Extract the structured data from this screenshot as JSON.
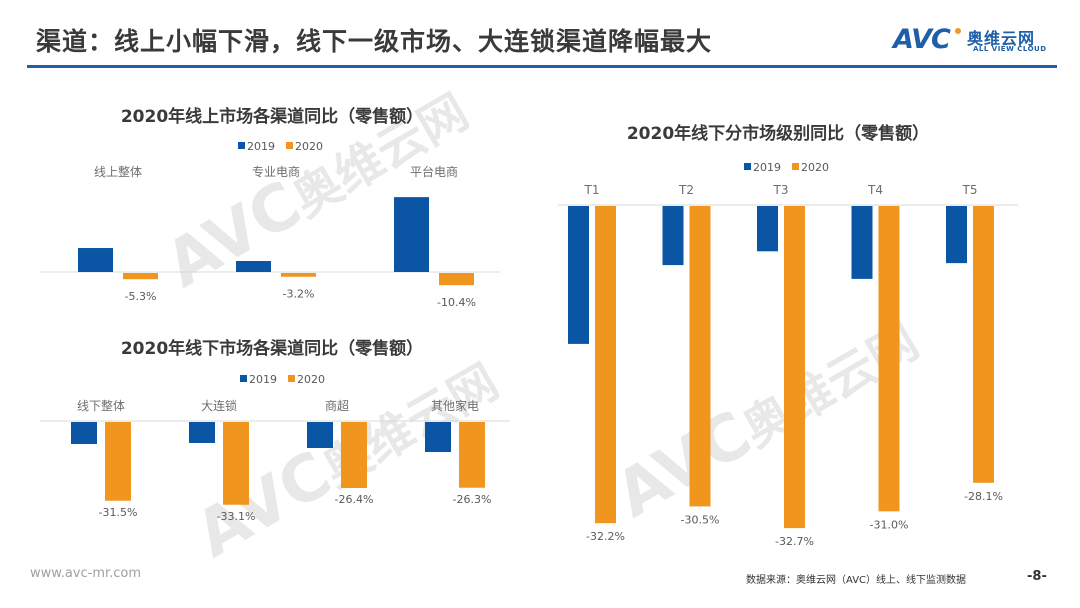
{
  "header": {
    "title": "渠道：线上小幅下滑，线下一级市场、大连锁渠道降幅最大",
    "logo": {
      "mark": "AVC",
      "name_cn": "奥维云网",
      "name_en": "ALL VIEW CLOUD"
    }
  },
  "colors": {
    "series_2019": "#0b56a4",
    "series_2020": "#f0961e",
    "accent": "#1f5fa8"
  },
  "watermark": {
    "mark": "AVC",
    "name_cn": "奥维云网",
    "name_en": "ALL VIEW CLOUD"
  },
  "chart_data": [
    {
      "id": "online",
      "type": "bar",
      "title": "2020年线上市场各渠道同比（零售额）",
      "legend": [
        "2019",
        "2020"
      ],
      "legend_position": "top",
      "categories": [
        "线上整体",
        "专业电商",
        "平台电商"
      ],
      "series": [
        {
          "name": "2019",
          "values": [
            20.5,
            9.4,
            64.0
          ]
        },
        {
          "name": "2020",
          "values": [
            -5.3,
            -3.2,
            -10.4
          ]
        }
      ],
      "data_labels": {
        "2020": [
          "-5.3%",
          "-3.2%",
          "-10.4%"
        ]
      },
      "unit": "%"
    },
    {
      "id": "offline",
      "type": "bar",
      "title": "2020年线下市场各渠道同比（零售额）",
      "legend": [
        "2019",
        "2020"
      ],
      "legend_position": "top",
      "categories": [
        "线下整体",
        "大连锁",
        "商超",
        "其他家电"
      ],
      "series": [
        {
          "name": "2019",
          "values": [
            -8.8,
            -8.4,
            -10.4,
            -12.0
          ]
        },
        {
          "name": "2020",
          "values": [
            -31.5,
            -33.1,
            -26.4,
            -26.3
          ]
        }
      ],
      "data_labels": {
        "2020": [
          "-31.5%",
          "-33.1%",
          "-26.4%",
          "-26.3%"
        ]
      },
      "unit": "%"
    },
    {
      "id": "tiers",
      "type": "bar",
      "title": "2020年线下分市场级别同比（零售额）",
      "legend": [
        "2019",
        "2020"
      ],
      "legend_position": "top",
      "categories": [
        "T1",
        "T2",
        "T3",
        "T4",
        "T5"
      ],
      "series": [
        {
          "name": "2019",
          "values": [
            -14.0,
            -6.0,
            -4.6,
            -7.4,
            -5.8
          ]
        },
        {
          "name": "2020",
          "values": [
            -32.2,
            -30.5,
            -32.7,
            -31.0,
            -28.1
          ]
        }
      ],
      "data_labels": {
        "2020": [
          "-32.2%",
          "-30.5%",
          "-32.7%",
          "-31.0%",
          "-28.1%"
        ]
      },
      "unit": "%"
    }
  ],
  "footer": {
    "url": "www.avc-mr.com",
    "source": "数据来源：奥维云网（AVC）线上、线下监测数据",
    "page": "-8-"
  }
}
